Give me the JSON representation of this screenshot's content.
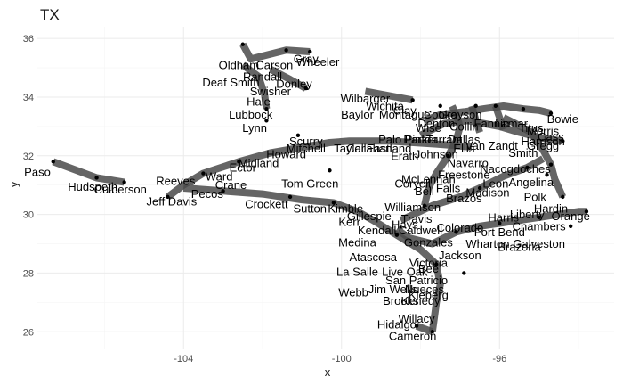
{
  "chart_data": {
    "type": "scatter",
    "title": "TX",
    "xlabel": "x",
    "ylabel": "y",
    "xlim": [
      -107.7,
      -93.1
    ],
    "ylim": [
      25.4,
      36.4
    ],
    "x_ticks": [
      -104,
      -100,
      -96
    ],
    "y_ticks": [
      26,
      28,
      30,
      32,
      34,
      36
    ],
    "x_tick_labels": [
      "-104",
      "-100",
      "-96"
    ],
    "y_tick_labels": [
      "26",
      "28",
      "30",
      "32",
      "34",
      "36"
    ],
    "grid": true,
    "legend": "none",
    "colors": {
      "path": "#4a4a4a",
      "point": "#000000",
      "grid_major": "#ebebeb",
      "grid_minor": "#f5f5f5"
    },
    "paths": [
      [
        [
          -107.3,
          31.8
        ],
        [
          -106.2,
          31.25
        ],
        [
          -105.5,
          31.1
        ]
      ],
      [
        [
          -104.4,
          30.6
        ],
        [
          -104.0,
          31.0
        ],
        [
          -103.5,
          31.4
        ],
        [
          -102.6,
          31.8
        ],
        [
          -101.8,
          32.1
        ],
        [
          -100.3,
          32.45
        ],
        [
          -99.8,
          32.5
        ],
        [
          -98.8,
          32.5
        ],
        [
          -97.6,
          32.4
        ],
        [
          -96.7,
          32.3
        ]
      ],
      [
        [
          -104.0,
          30.9
        ],
        [
          -103.0,
          30.8
        ],
        [
          -102.0,
          30.7
        ],
        [
          -101.0,
          30.5
        ],
        [
          -100.2,
          30.4
        ],
        [
          -99.6,
          30.1
        ],
        [
          -99.2,
          29.8
        ],
        [
          -98.6,
          29.3
        ],
        [
          -98.0,
          28.8
        ],
        [
          -97.6,
          28.3
        ],
        [
          -97.5,
          27.6
        ],
        [
          -97.6,
          27.0
        ],
        [
          -97.65,
          26.5
        ],
        [
          -97.7,
          26.0
        ]
      ],
      [
        [
          -98.1,
          26.2
        ],
        [
          -97.7,
          26.0
        ]
      ],
      [
        [
          -98.6,
          29.5
        ],
        [
          -98.3,
          29.2
        ],
        [
          -97.7,
          29.0
        ],
        [
          -97.1,
          29.4
        ],
        [
          -96.5,
          29.6
        ],
        [
          -96.0,
          29.7
        ],
        [
          -95.5,
          29.8
        ],
        [
          -95.0,
          29.9
        ],
        [
          -94.5,
          30.0
        ],
        [
          -94.0,
          30.1
        ],
        [
          -93.8,
          30.1
        ]
      ],
      [
        [
          -98.5,
          29.8
        ],
        [
          -97.7,
          30.3
        ],
        [
          -97.0,
          30.6
        ],
        [
          -96.5,
          30.9
        ],
        [
          -95.9,
          31.3
        ],
        [
          -95.3,
          31.6
        ],
        [
          -94.9,
          31.9
        ]
      ],
      [
        [
          -99.4,
          34.2
        ],
        [
          -98.6,
          34.0
        ],
        [
          -98.2,
          33.9
        ]
      ],
      [
        [
          -97.9,
          33.2
        ],
        [
          -97.5,
          33.4
        ],
        [
          -96.9,
          33.5
        ],
        [
          -96.4,
          33.6
        ],
        [
          -95.9,
          33.7
        ],
        [
          -95.4,
          33.6
        ],
        [
          -95.0,
          33.55
        ],
        [
          -94.7,
          33.45
        ]
      ],
      [
        [
          -98.0,
          32.7
        ],
        [
          -97.4,
          33.1
        ],
        [
          -96.8,
          33.2
        ],
        [
          -96.0,
          33.0
        ],
        [
          -95.5,
          32.8
        ],
        [
          -94.9,
          32.6
        ],
        [
          -94.4,
          32.5
        ]
      ],
      [
        [
          -95.9,
          33.3
        ],
        [
          -95.6,
          33.1
        ],
        [
          -95.2,
          32.8
        ],
        [
          -94.9,
          32.2
        ],
        [
          -94.7,
          31.7
        ],
        [
          -94.6,
          31.2
        ],
        [
          -94.5,
          30.9
        ],
        [
          -94.4,
          30.6
        ]
      ],
      [
        [
          -97.2,
          33.7
        ],
        [
          -97.1,
          33.4
        ],
        [
          -97.0,
          33.0
        ],
        [
          -97.1,
          32.5
        ],
        [
          -97.3,
          32.0
        ],
        [
          -97.6,
          31.4
        ],
        [
          -97.8,
          30.9
        ],
        [
          -97.9,
          30.3
        ]
      ],
      [
        [
          -96.7,
          33.7
        ],
        [
          -96.6,
          33.2
        ],
        [
          -96.5,
          32.8
        ]
      ],
      [
        [
          -96.1,
          33.7
        ],
        [
          -96.0,
          33.3
        ],
        [
          -95.9,
          32.9
        ]
      ],
      [
        [
          -102.5,
          35.8
        ],
        [
          -102.3,
          35.3
        ],
        [
          -101.4,
          35.6
        ],
        [
          -100.8,
          35.55
        ]
      ],
      [
        [
          -102.5,
          35.1
        ],
        [
          -102.1,
          34.7
        ],
        [
          -101.95,
          34.1
        ],
        [
          -101.9,
          33.6
        ]
      ],
      [
        [
          -101.8,
          34.95
        ],
        [
          -101.3,
          34.6
        ],
        [
          -100.9,
          34.3
        ]
      ]
    ],
    "points": [
      {
        "x": -107.3,
        "y": 31.8
      },
      {
        "x": -106.2,
        "y": 31.25
      },
      {
        "x": -105.5,
        "y": 31.1
      },
      {
        "x": -104.4,
        "y": 30.6
      },
      {
        "x": -103.5,
        "y": 31.4
      },
      {
        "x": -102.6,
        "y": 31.8
      },
      {
        "x": -101.9,
        "y": 33.2
      },
      {
        "x": -101.1,
        "y": 32.7
      },
      {
        "x": -100.3,
        "y": 31.5
      },
      {
        "x": -103.0,
        "y": 30.8
      },
      {
        "x": -101.3,
        "y": 30.6
      },
      {
        "x": -100.2,
        "y": 30.4
      },
      {
        "x": -98.6,
        "y": 29.3
      },
      {
        "x": -97.6,
        "y": 28.3
      },
      {
        "x": -97.7,
        "y": 26.0
      },
      {
        "x": -98.1,
        "y": 26.2
      },
      {
        "x": -97.1,
        "y": 29.4
      },
      {
        "x": -96.0,
        "y": 29.7
      },
      {
        "x": -95.0,
        "y": 29.9
      },
      {
        "x": -93.8,
        "y": 30.1
      },
      {
        "x": -96.5,
        "y": 30.9
      },
      {
        "x": -95.3,
        "y": 31.6
      },
      {
        "x": -98.2,
        "y": 33.9
      },
      {
        "x": -97.5,
        "y": 33.7
      },
      {
        "x": -96.6,
        "y": 33.7
      },
      {
        "x": -96.1,
        "y": 33.7
      },
      {
        "x": -95.4,
        "y": 33.6
      },
      {
        "x": -94.7,
        "y": 33.45
      },
      {
        "x": -94.4,
        "y": 32.5
      },
      {
        "x": -94.4,
        "y": 30.6
      },
      {
        "x": -94.7,
        "y": 31.7
      },
      {
        "x": -97.9,
        "y": 30.3
      },
      {
        "x": -97.3,
        "y": 32.0
      },
      {
        "x": -102.5,
        "y": 35.8
      },
      {
        "x": -101.4,
        "y": 35.6
      },
      {
        "x": -100.8,
        "y": 35.55
      },
      {
        "x": -101.9,
        "y": 33.6
      },
      {
        "x": -100.9,
        "y": 34.3
      },
      {
        "x": -96.9,
        "y": 28.0
      },
      {
        "x": -94.2,
        "y": 29.6
      },
      {
        "x": -94.8,
        "y": 31.35
      }
    ],
    "labels": [
      {
        "text": "Paso",
        "x": -107.7,
        "y": 31.45
      },
      {
        "text": "Hudspeth",
        "x": -106.3,
        "y": 30.95
      },
      {
        "text": "Culberson",
        "x": -105.6,
        "y": 30.85
      },
      {
        "text": "Reeves",
        "x": -104.2,
        "y": 31.15
      },
      {
        "text": "Jeff Davis",
        "x": -104.3,
        "y": 30.45
      },
      {
        "text": "Pecos",
        "x": -103.4,
        "y": 30.7
      },
      {
        "text": "Crane",
        "x": -102.8,
        "y": 31.0
      },
      {
        "text": "Ward",
        "x": -103.1,
        "y": 31.3
      },
      {
        "text": "Ector",
        "x": -102.5,
        "y": 31.6
      },
      {
        "text": "Midland",
        "x": -102.1,
        "y": 31.75
      },
      {
        "text": "Howard",
        "x": -101.4,
        "y": 32.05
      },
      {
        "text": "Mitchell",
        "x": -100.9,
        "y": 32.25
      },
      {
        "text": "Scurry",
        "x": -100.9,
        "y": 32.5
      },
      {
        "text": "Taylor",
        "x": -99.8,
        "y": 32.25
      },
      {
        "text": "Callahan",
        "x": -99.3,
        "y": 32.25
      },
      {
        "text": "Eastland",
        "x": -98.8,
        "y": 32.25
      },
      {
        "text": "Palo Pinto",
        "x": -98.4,
        "y": 32.55
      },
      {
        "text": "Tom Green",
        "x": -100.8,
        "y": 31.05
      },
      {
        "text": "Crockett",
        "x": -101.9,
        "y": 30.35
      },
      {
        "text": "Sutton",
        "x": -100.8,
        "y": 30.2
      },
      {
        "text": "Kimble",
        "x": -99.9,
        "y": 30.2
      },
      {
        "text": "Gillespie",
        "x": -99.3,
        "y": 29.95
      },
      {
        "text": "Kerr",
        "x": -99.8,
        "y": 29.75
      },
      {
        "text": "Kendall",
        "x": -99.1,
        "y": 29.45
      },
      {
        "text": "Medina",
        "x": -99.6,
        "y": 29.05
      },
      {
        "text": "Atascosa",
        "x": -99.2,
        "y": 28.55
      },
      {
        "text": "La Salle",
        "x": -99.6,
        "y": 28.05
      },
      {
        "text": "Live Oak",
        "x": -98.4,
        "y": 28.05
      },
      {
        "text": "Bee",
        "x": -97.8,
        "y": 28.15
      },
      {
        "text": "San Patricio",
        "x": -98.1,
        "y": 27.75
      },
      {
        "text": "Jim Wells",
        "x": -98.7,
        "y": 27.45
      },
      {
        "text": "Nueces",
        "x": -97.9,
        "y": 27.45
      },
      {
        "text": "Webb",
        "x": -99.7,
        "y": 27.35
      },
      {
        "text": "Brooks",
        "x": -98.5,
        "y": 27.05
      },
      {
        "text": "Kenedy",
        "x": -98.0,
        "y": 27.05
      },
      {
        "text": "Kleberg",
        "x": -97.8,
        "y": 27.25
      },
      {
        "text": "Willacy",
        "x": -98.1,
        "y": 26.45
      },
      {
        "text": "Hidalgo",
        "x": -98.6,
        "y": 26.25
      },
      {
        "text": "Cameron",
        "x": -98.2,
        "y": 25.85
      },
      {
        "text": "Jackson",
        "x": -97.0,
        "y": 28.6
      },
      {
        "text": "Victoria",
        "x": -97.8,
        "y": 28.35
      },
      {
        "text": "Wharton",
        "x": -96.3,
        "y": 29.0
      },
      {
        "text": "Brazoria",
        "x": -95.5,
        "y": 28.9
      },
      {
        "text": "Galveston",
        "x": -95.0,
        "y": 29.0
      },
      {
        "text": "Fort Bend",
        "x": -96.0,
        "y": 29.4
      },
      {
        "text": "Colorado",
        "x": -97.0,
        "y": 29.55
      },
      {
        "text": "Gonzales",
        "x": -97.8,
        "y": 29.05
      },
      {
        "text": "Caldwell",
        "x": -98.0,
        "y": 29.45
      },
      {
        "text": "Travis",
        "x": -98.1,
        "y": 29.85
      },
      {
        "text": "Hays",
        "x": -98.4,
        "y": 29.65
      },
      {
        "text": "Williamson",
        "x": -98.2,
        "y": 30.25
      },
      {
        "text": "Bell",
        "x": -97.9,
        "y": 30.8
      },
      {
        "text": "Falls",
        "x": -97.3,
        "y": 30.9
      },
      {
        "text": "Coryell",
        "x": -98.2,
        "y": 31.05
      },
      {
        "text": "McLennan",
        "x": -97.8,
        "y": 31.2
      },
      {
        "text": "Freestone",
        "x": -96.9,
        "y": 31.35
      },
      {
        "text": "Navarro",
        "x": -96.8,
        "y": 31.75
      },
      {
        "text": "Johnson",
        "x": -97.6,
        "y": 32.05
      },
      {
        "text": "Erath",
        "x": -98.4,
        "y": 32.0
      },
      {
        "text": "Parker",
        "x": -98.0,
        "y": 32.55
      },
      {
        "text": "Tarrant",
        "x": -97.4,
        "y": 32.55
      },
      {
        "text": "Dallas",
        "x": -96.9,
        "y": 32.55
      },
      {
        "text": "Ellis",
        "x": -96.9,
        "y": 32.25
      },
      {
        "text": "Van Zandt",
        "x": -96.2,
        "y": 32.35
      },
      {
        "text": "Smith",
        "x": -95.4,
        "y": 32.1
      },
      {
        "text": "Gregg",
        "x": -94.9,
        "y": 32.35
      },
      {
        "text": "Harrison",
        "x": -94.9,
        "y": 32.5
      },
      {
        "text": "Nacogdoches",
        "x": -95.6,
        "y": 31.55
      },
      {
        "text": "Angelina",
        "x": -95.2,
        "y": 31.1
      },
      {
        "text": "Leon",
        "x": -96.1,
        "y": 31.05
      },
      {
        "text": "Madison",
        "x": -96.3,
        "y": 30.75
      },
      {
        "text": "Brazos",
        "x": -96.9,
        "y": 30.55
      },
      {
        "text": "Polk",
        "x": -95.1,
        "y": 30.6
      },
      {
        "text": "Hardin",
        "x": -94.7,
        "y": 30.2
      },
      {
        "text": "Orange",
        "x": -94.2,
        "y": 29.95
      },
      {
        "text": "Chambers",
        "x": -95.0,
        "y": 29.6
      },
      {
        "text": "Liberty",
        "x": -95.3,
        "y": 30.0
      },
      {
        "text": "Harris",
        "x": -95.9,
        "y": 29.9
      },
      {
        "text": "Montague",
        "x": -98.4,
        "y": 33.4
      },
      {
        "text": "Cooke",
        "x": -97.5,
        "y": 33.4
      },
      {
        "text": "Grayson",
        "x": -97.0,
        "y": 33.4
      },
      {
        "text": "Collin",
        "x": -96.9,
        "y": 33.0
      },
      {
        "text": "Denton",
        "x": -97.6,
        "y": 33.1
      },
      {
        "text": "Wise",
        "x": -97.8,
        "y": 32.95
      },
      {
        "text": "Fannin",
        "x": -96.2,
        "y": 33.1
      },
      {
        "text": "Lamar",
        "x": -95.7,
        "y": 33.1
      },
      {
        "text": "Titus",
        "x": -95.2,
        "y": 32.95
      },
      {
        "text": "Morris",
        "x": -94.9,
        "y": 32.85
      },
      {
        "text": "Cass",
        "x": -94.7,
        "y": 32.65
      },
      {
        "text": "Bowie",
        "x": -94.4,
        "y": 33.25
      },
      {
        "text": "Wichita",
        "x": -98.9,
        "y": 33.7
      },
      {
        "text": "Clay",
        "x": -98.4,
        "y": 33.55
      },
      {
        "text": "Baylor",
        "x": -99.6,
        "y": 33.4
      },
      {
        "text": "Wilbarger",
        "x": -99.4,
        "y": 33.95
      },
      {
        "text": "Lubbock",
        "x": -102.3,
        "y": 33.4
      },
      {
        "text": "Lynn",
        "x": -102.2,
        "y": 32.95
      },
      {
        "text": "Hale",
        "x": -102.1,
        "y": 33.85
      },
      {
        "text": "Swisher",
        "x": -101.8,
        "y": 34.2
      },
      {
        "text": "Randall",
        "x": -102.0,
        "y": 34.7
      },
      {
        "text": "Donley",
        "x": -101.2,
        "y": 34.45
      },
      {
        "text": "Deaf Smith",
        "x": -102.8,
        "y": 34.5
      },
      {
        "text": "Oldham",
        "x": -102.6,
        "y": 35.1
      },
      {
        "text": "Carson",
        "x": -101.7,
        "y": 35.1
      },
      {
        "text": "Gray",
        "x": -100.9,
        "y": 35.3
      },
      {
        "text": "Wheeler",
        "x": -100.6,
        "y": 35.2
      }
    ]
  }
}
